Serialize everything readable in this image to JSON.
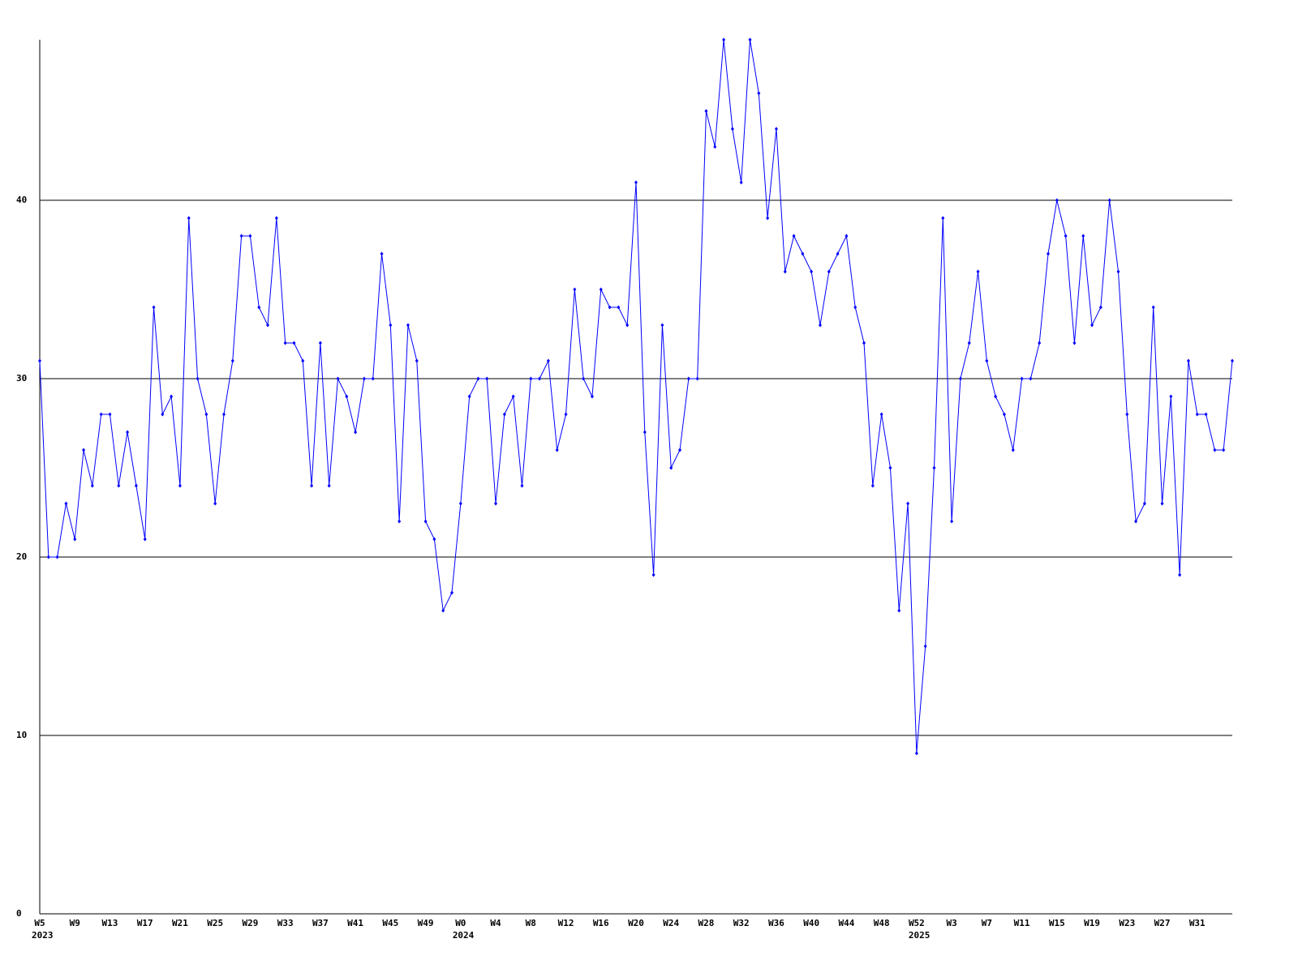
{
  "chart_data": {
    "type": "line",
    "categories": [
      "W5",
      null,
      null,
      null,
      "W9",
      null,
      null,
      null,
      "W13",
      null,
      null,
      null,
      "W17",
      null,
      null,
      null,
      "W21",
      null,
      null,
      null,
      "W25",
      null,
      null,
      null,
      "W29",
      null,
      null,
      null,
      "W33",
      null,
      null,
      null,
      "W37",
      null,
      null,
      null,
      "W41",
      null,
      null,
      null,
      "W45",
      null,
      null,
      null,
      "W49",
      null,
      null,
      null,
      "W0",
      null,
      null,
      null,
      "W4",
      null,
      null,
      null,
      "W8",
      null,
      null,
      null,
      "W12",
      null,
      null,
      null,
      "W16",
      null,
      null,
      null,
      "W20",
      null,
      null,
      null,
      "W24",
      null,
      null,
      null,
      "W28",
      null,
      null,
      null,
      "W32",
      null,
      null,
      null,
      "W36",
      null,
      null,
      null,
      "W40",
      null,
      null,
      null,
      "W44",
      null,
      null,
      null,
      "W48",
      null,
      null,
      null,
      "W52",
      null,
      null,
      null,
      "W3",
      null,
      null,
      null,
      "W7",
      null,
      null,
      null,
      "W11",
      null,
      null,
      null,
      "W15",
      null,
      null,
      null,
      "W19",
      null,
      null,
      null,
      "W23",
      null,
      null,
      null,
      "W27",
      null,
      null,
      null,
      "W31",
      null,
      null,
      null,
      null
    ],
    "years": [
      "2023",
      null,
      null,
      null,
      null,
      null,
      null,
      null,
      null,
      null,
      null,
      null,
      null,
      null,
      null,
      null,
      null,
      null,
      null,
      null,
      null,
      null,
      null,
      null,
      null,
      null,
      null,
      null,
      null,
      null,
      null,
      null,
      null,
      null,
      null,
      null,
      null,
      null,
      null,
      null,
      null,
      null,
      null,
      null,
      null,
      null,
      null,
      null,
      "2024",
      null,
      null,
      null,
      null,
      null,
      null,
      null,
      null,
      null,
      null,
      null,
      null,
      null,
      null,
      null,
      null,
      null,
      null,
      null,
      null,
      null,
      null,
      null,
      null,
      null,
      null,
      null,
      null,
      null,
      null,
      null,
      null,
      null,
      null,
      null,
      null,
      null,
      null,
      null,
      null,
      null,
      null,
      null,
      null,
      null,
      null,
      null,
      null,
      null,
      null,
      null,
      "2025",
      null,
      null,
      null,
      null,
      null,
      null,
      null,
      null,
      null,
      null,
      null,
      null,
      null,
      null,
      null,
      null,
      null,
      null,
      null,
      null,
      null,
      null,
      null,
      null,
      null,
      null,
      null,
      null,
      null,
      null,
      null,
      null,
      null,
      null,
      null,
      null
    ],
    "series": [
      {
        "color": "#0000ff",
        "values": [
          31,
          20,
          20,
          23,
          21,
          26,
          24,
          28,
          28,
          24,
          27,
          24,
          21,
          34,
          28,
          29,
          24,
          39,
          30,
          28,
          23,
          28,
          31,
          38,
          38,
          34,
          33,
          39,
          32,
          32,
          31,
          24,
          32,
          24,
          30,
          29,
          27,
          30,
          30,
          37,
          33,
          22,
          33,
          31,
          22,
          21,
          17,
          18,
          23,
          29,
          30,
          30,
          23,
          28,
          29,
          24,
          30,
          30,
          31,
          26,
          28,
          35,
          30,
          29,
          35,
          34,
          34,
          33,
          41,
          27,
          19,
          33,
          25,
          26,
          30,
          30,
          45,
          43,
          49,
          44,
          41,
          49,
          46,
          39,
          44,
          36,
          38,
          37,
          36,
          33,
          36,
          37,
          38,
          34,
          32,
          24,
          28,
          25,
          17,
          23,
          9,
          15,
          25,
          39,
          22,
          30,
          32,
          36,
          31,
          29,
          28,
          26,
          30,
          30,
          32,
          37,
          40,
          38,
          32,
          38,
          33,
          34,
          40,
          36,
          28,
          22,
          23,
          34,
          23,
          29,
          19,
          31,
          28,
          28,
          26,
          26,
          31
        ]
      }
    ],
    "ylim": [
      0,
      49
    ],
    "yticks": [
      0,
      10,
      20,
      30,
      40
    ],
    "grid": true
  }
}
